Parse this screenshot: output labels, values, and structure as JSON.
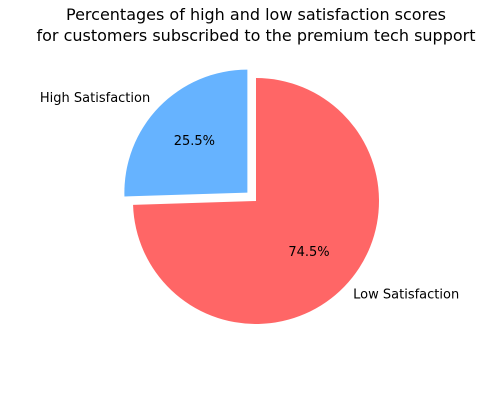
{
  "chart_data": {
    "type": "pie",
    "title": [
      "Percentages of high and low satisfaction scores",
      "for customers subscribed to the premium tech support"
    ],
    "slices": [
      {
        "label": "High Satisfaction",
        "value": 25.5,
        "pct_label": "25.5%",
        "color": "#66b3ff",
        "exploded": true
      },
      {
        "label": "Low Satisfaction",
        "value": 74.5,
        "pct_label": "74.5%",
        "color": "#ff6666",
        "exploded": false
      }
    ],
    "start_angle_deg": 90,
    "direction": "counterclockwise",
    "legend": "none"
  }
}
